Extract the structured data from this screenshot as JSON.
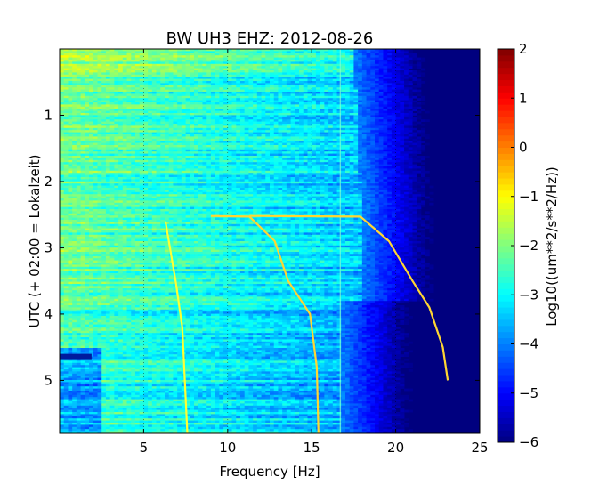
{
  "chart_data": {
    "type": "heatmap",
    "title": "BW UH3 EHZ: 2012-08-26",
    "xlabel": "Frequency [Hz]",
    "ylabel": "UTC (+ 02:00 = Lokalzeit)",
    "colorbar_label": "Log10((um**2/s**2/Hz))",
    "colormap": "jet",
    "xlim": [
      0,
      25
    ],
    "ylim": [
      5.8,
      0.0
    ],
    "y_inverted": true,
    "x_ticks": [
      5,
      10,
      15,
      20,
      25
    ],
    "x_tick_labels": [
      "5",
      "10",
      "15",
      "20",
      "25"
    ],
    "y_ticks": [
      1,
      2,
      3,
      4,
      5
    ],
    "y_tick_labels": [
      "1",
      "2",
      "3",
      "4",
      "5"
    ],
    "colorbar_range": [
      -6,
      2
    ],
    "colorbar_ticks": [
      2,
      1,
      0,
      -1,
      -2,
      -3,
      -4,
      -5,
      -6
    ],
    "colorbar_tick_labels": [
      "2",
      "1",
      "0",
      "−1",
      "−2",
      "−3",
      "−4",
      "−5",
      "−6"
    ],
    "grid": "dotted, x only",
    "notable_features": {
      "dispersive_tracks": [
        {
          "color": "#ffff33",
          "points": [
            [
              6.3,
              2.6
            ],
            [
              6.9,
              3.5
            ],
            [
              7.3,
              4.2
            ],
            [
              7.6,
              5.8
            ]
          ]
        },
        {
          "color": "#ffd633",
          "points": [
            [
              9.0,
              2.52
            ],
            [
              11.3,
              2.53
            ],
            [
              12.8,
              2.9
            ],
            [
              13.6,
              3.5
            ],
            [
              14.9,
              4.0
            ],
            [
              15.3,
              4.8
            ],
            [
              15.4,
              5.8
            ]
          ]
        },
        {
          "color": "#ffd633",
          "points": [
            [
              11.3,
              2.52
            ],
            [
              17.9,
              2.53
            ],
            [
              19.6,
              2.9
            ],
            [
              21.0,
              3.5
            ],
            [
              22.0,
              3.9
            ],
            [
              22.8,
              4.5
            ],
            [
              23.1,
              5.0
            ]
          ]
        }
      ],
      "constant_line_hz": 16.7,
      "lowfreq_band_hours": [
        4.6,
        4.68
      ]
    }
  }
}
